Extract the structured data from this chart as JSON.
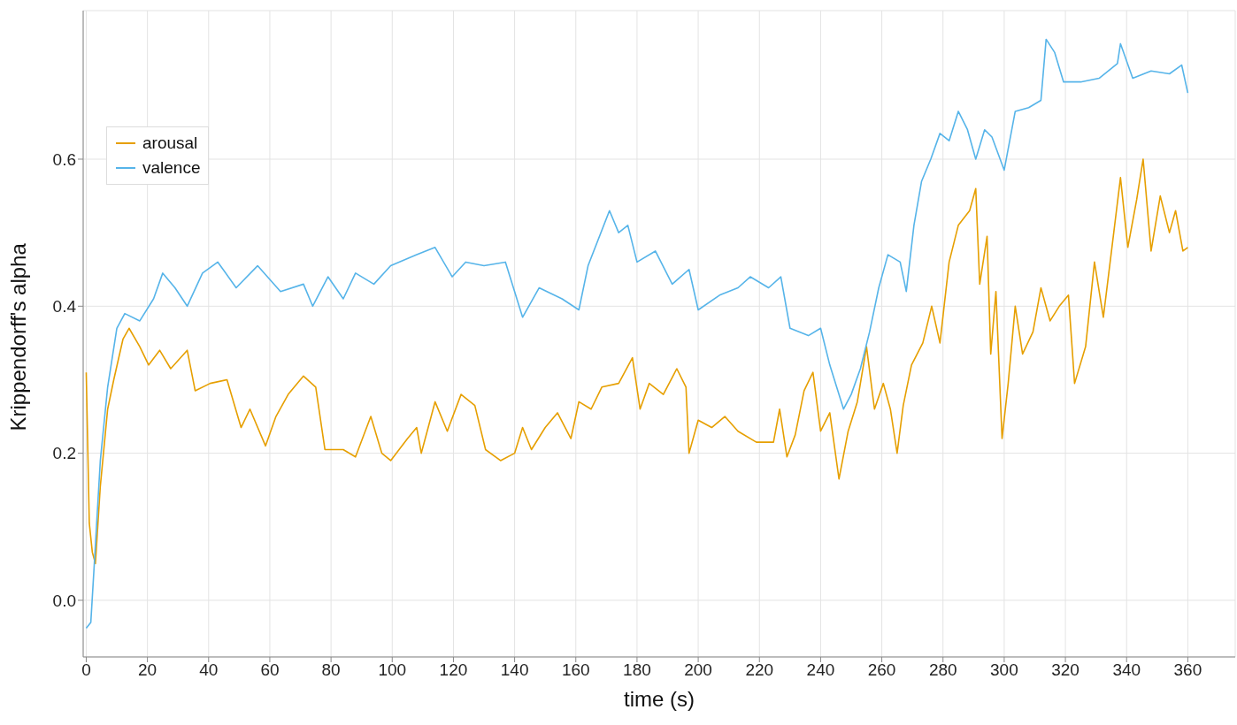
{
  "chart_data": {
    "type": "line",
    "xlabel": "time (s)",
    "ylabel": "Krippendorff's alpha",
    "xlim": [
      -1,
      375.5
    ],
    "ylim": [
      -0.077,
      0.802
    ],
    "xticks": [
      0,
      20,
      40,
      60,
      80,
      100,
      120,
      140,
      160,
      180,
      200,
      220,
      240,
      260,
      280,
      300,
      320,
      340,
      360
    ],
    "yticks": [
      {
        "value": 0,
        "label": "0.0"
      },
      0.2,
      0.4,
      0.6
    ],
    "grid": true,
    "legend": "top left",
    "marker": "none",
    "line_style": "solid",
    "series": [
      {
        "name": "arousal",
        "color": "#e69f00",
        "x": [
          0,
          1,
          2,
          3,
          4.6,
          7,
          9,
          12,
          14,
          17.5,
          20.4,
          24,
          27.6,
          33,
          35.6,
          40.5,
          46,
          50.6,
          53.5,
          58.6,
          62,
          66,
          71,
          75,
          78,
          84,
          88,
          93,
          96.6,
          99.5,
          105,
          108,
          109.5,
          114,
          118,
          122.5,
          127,
          130.5,
          135.4,
          140,
          142.6,
          145.5,
          150,
          154,
          158.4,
          161,
          165,
          168.5,
          174,
          178.5,
          181,
          184,
          188.6,
          193,
          196,
          197,
          200,
          204.4,
          208.7,
          213,
          219,
          224.6,
          226.6,
          229,
          231.7,
          234.6,
          237.5,
          240,
          243,
          246,
          249,
          252,
          255,
          257.6,
          260.5,
          262.8,
          265,
          267,
          269.7,
          273.4,
          276.3,
          279,
          282,
          285,
          288.7,
          290.7,
          292,
          294.4,
          295.6,
          297.3,
          299.3,
          301.3,
          303.6,
          306,
          309.4,
          312,
          315,
          318,
          321,
          323,
          326.6,
          329.5,
          332.4,
          335.8,
          338,
          340.4,
          343.3,
          345.4,
          348,
          351,
          354,
          356,
          358.4,
          360
        ],
        "values": [
          0.31,
          0.105,
          0.065,
          0.05,
          0.155,
          0.26,
          0.3,
          0.355,
          0.37,
          0.345,
          0.32,
          0.34,
          0.315,
          0.34,
          0.285,
          0.295,
          0.3,
          0.235,
          0.26,
          0.21,
          0.25,
          0.28,
          0.305,
          0.29,
          0.205,
          0.205,
          0.195,
          0.25,
          0.2,
          0.19,
          0.22,
          0.235,
          0.2,
          0.27,
          0.23,
          0.28,
          0.265,
          0.205,
          0.19,
          0.2,
          0.235,
          0.205,
          0.235,
          0.255,
          0.22,
          0.27,
          0.26,
          0.29,
          0.295,
          0.33,
          0.26,
          0.295,
          0.28,
          0.315,
          0.29,
          0.2,
          0.245,
          0.235,
          0.25,
          0.23,
          0.215,
          0.215,
          0.26,
          0.195,
          0.225,
          0.285,
          0.31,
          0.23,
          0.255,
          0.165,
          0.23,
          0.27,
          0.345,
          0.26,
          0.295,
          0.26,
          0.2,
          0.265,
          0.32,
          0.35,
          0.4,
          0.35,
          0.46,
          0.51,
          0.53,
          0.56,
          0.43,
          0.495,
          0.335,
          0.42,
          0.22,
          0.295,
          0.4,
          0.335,
          0.365,
          0.425,
          0.38,
          0.4,
          0.415,
          0.295,
          0.345,
          0.46,
          0.385,
          0.5,
          0.575,
          0.48,
          0.545,
          0.6,
          0.475,
          0.55,
          0.5,
          0.53,
          0.475,
          0.48
        ]
      },
      {
        "name": "valence",
        "color": "#56b4e9",
        "x": [
          0,
          1.5,
          2.6,
          4.6,
          7,
          10,
          12.6,
          17.5,
          22,
          25,
          29,
          33,
          38,
          43,
          49,
          56,
          63.5,
          71,
          74,
          79,
          84,
          88,
          94,
          99.5,
          108,
          114,
          119.6,
          124,
          130,
          137,
          142.6,
          148,
          155.5,
          161,
          164,
          171,
          174,
          177,
          180,
          186,
          191.5,
          197,
          200,
          207,
          213,
          217,
          223,
          227,
          230,
          236,
          240,
          243,
          247.5,
          250,
          253,
          256,
          259,
          262,
          266,
          268,
          270.5,
          273,
          276,
          279,
          282,
          285,
          288,
          290.7,
          293.6,
          296,
          300,
          303.6,
          308,
          312,
          313.7,
          316.5,
          319.4,
          325,
          331,
          337,
          338,
          342,
          348,
          354,
          358,
          360
        ],
        "values": [
          -0.038,
          -0.03,
          0.047,
          0.19,
          0.29,
          0.37,
          0.39,
          0.38,
          0.41,
          0.445,
          0.425,
          0.4,
          0.445,
          0.46,
          0.425,
          0.455,
          0.42,
          0.43,
          0.4,
          0.44,
          0.41,
          0.445,
          0.43,
          0.455,
          0.47,
          0.48,
          0.44,
          0.46,
          0.455,
          0.46,
          0.385,
          0.425,
          0.41,
          0.395,
          0.455,
          0.53,
          0.5,
          0.51,
          0.46,
          0.475,
          0.43,
          0.45,
          0.395,
          0.415,
          0.425,
          0.44,
          0.425,
          0.44,
          0.37,
          0.36,
          0.37,
          0.32,
          0.26,
          0.28,
          0.315,
          0.365,
          0.425,
          0.47,
          0.46,
          0.42,
          0.51,
          0.57,
          0.6,
          0.635,
          0.625,
          0.665,
          0.64,
          0.6,
          0.64,
          0.63,
          0.585,
          0.665,
          0.67,
          0.68,
          0.763,
          0.745,
          0.705,
          0.705,
          0.71,
          0.73,
          0.757,
          0.71,
          0.72,
          0.716,
          0.728,
          0.69
        ]
      }
    ]
  }
}
